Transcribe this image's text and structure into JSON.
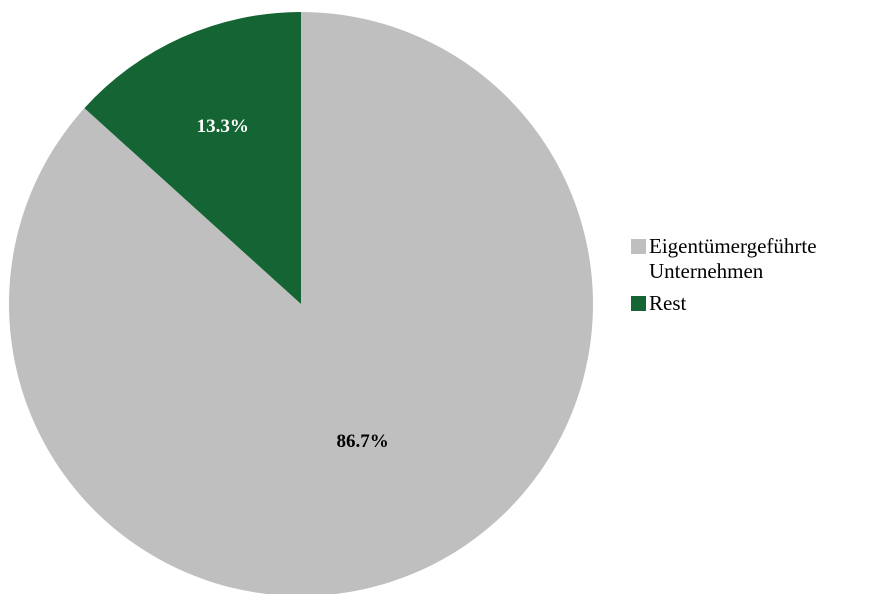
{
  "chart_data": {
    "type": "pie",
    "title": "",
    "slices": [
      {
        "name": "Eigentümergeführte Unternehmen",
        "value": 86.7,
        "label": "86.7%",
        "color": "#bfbfbf",
        "label_color": "#000000"
      },
      {
        "name": "Rest",
        "value": 13.3,
        "label": "13.3%",
        "color": "#156434",
        "label_color": "#ffffff"
      }
    ],
    "start": "12 o'clock",
    "direction": "clockwise",
    "legend_position": "right"
  },
  "legend": {
    "items": [
      {
        "label": "Eigentümergeführte Unternehmen",
        "color": "#bfbfbf"
      },
      {
        "label": "Rest",
        "color": "#156434"
      }
    ]
  }
}
